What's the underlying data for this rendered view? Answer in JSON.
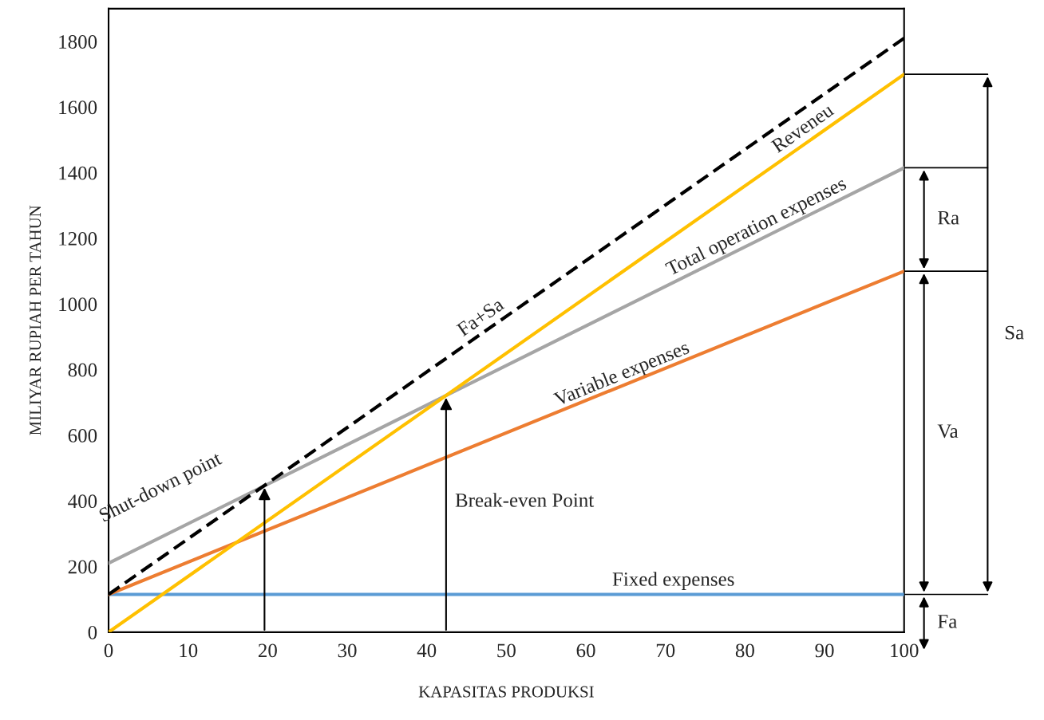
{
  "chart_data": {
    "type": "line",
    "xlabel": "KAPASITAS PRODUKSI",
    "ylabel": "MILIYAR RUPIAH PER TAHUN",
    "xlim": [
      0,
      100
    ],
    "ylim": [
      0,
      1900
    ],
    "xticks": [
      0,
      10,
      20,
      30,
      40,
      50,
      60,
      70,
      80,
      90,
      100
    ],
    "yticks": [
      0,
      200,
      400,
      600,
      800,
      1000,
      1200,
      1400,
      1600,
      1800
    ],
    "x": [
      0,
      100
    ],
    "grid": false,
    "legend": false,
    "marker": "none",
    "series": [
      {
        "name": "Fixed expenses",
        "color": "#5b9bd5",
        "values": [
          115,
          115
        ]
      },
      {
        "name": "Variable expenses",
        "color": "#ed7d31",
        "values": [
          115,
          1100
        ]
      },
      {
        "name": "Total operation expenses",
        "color": "#a5a5a5",
        "values": [
          210,
          1415
        ]
      },
      {
        "name": "Reveneu",
        "color": "#ffc000",
        "values": [
          0,
          1700
        ]
      },
      {
        "name": "Fa+Sa",
        "color": "#000000",
        "line_style": "dashed",
        "values": [
          115,
          1810
        ]
      }
    ],
    "annotations": [
      {
        "text": "Shut-down point",
        "x": 19.6,
        "y": 447
      },
      "Break-even Point",
      "Fa",
      "Va",
      "Ra",
      "Sa"
    ]
  }
}
